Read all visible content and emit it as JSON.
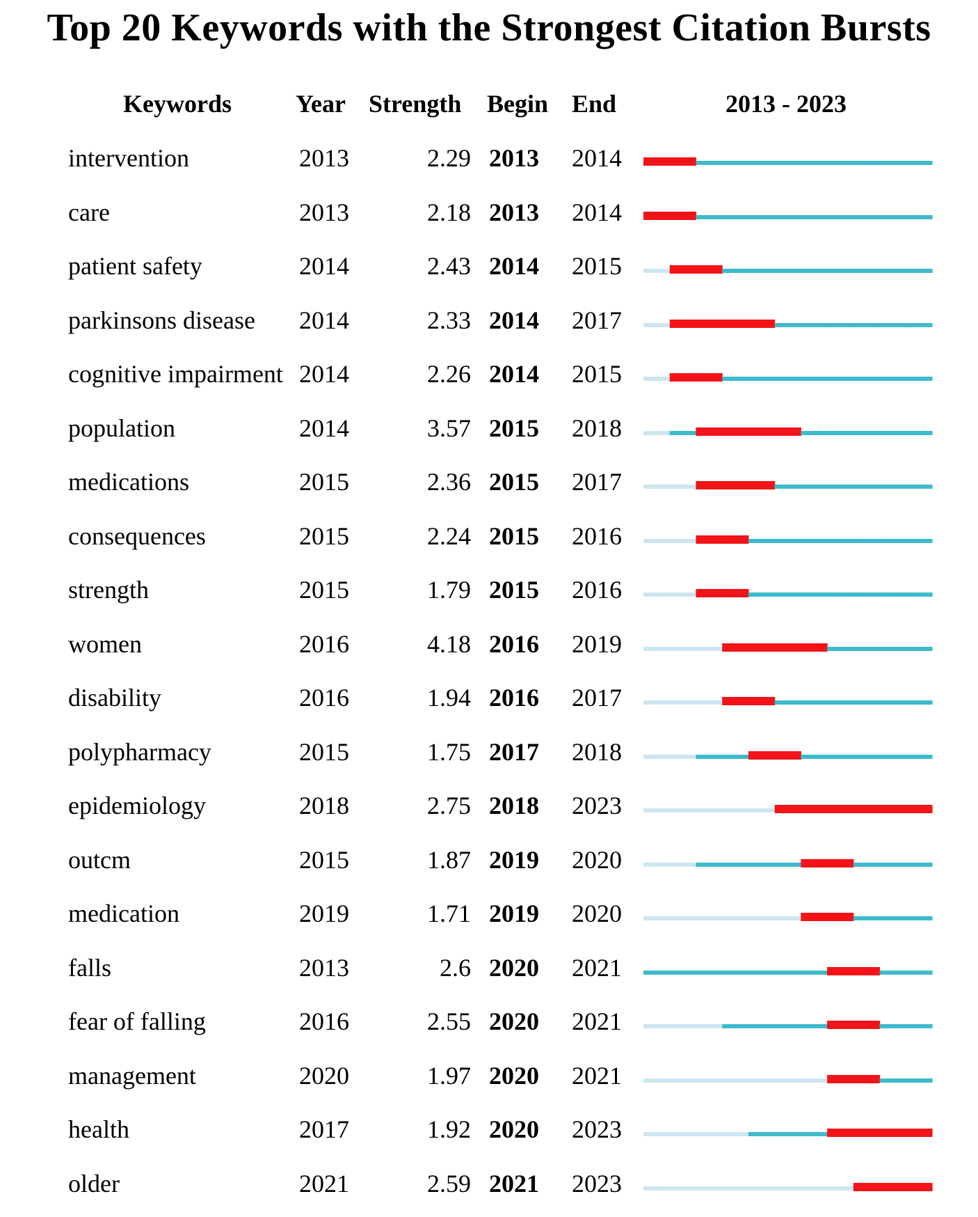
{
  "title": "Top 20 Keywords with the Strongest Citation Bursts",
  "headers": {
    "keywords": "Keywords",
    "year": "Year",
    "strength": "Strength",
    "begin": "Begin",
    "end": "End",
    "range": "2013 - 2023"
  },
  "colors": {
    "burst": "#f21418",
    "active": "#3dbbcb",
    "inactive": "#cde6f1"
  },
  "chart_data": {
    "type": "table",
    "title": "Top 20 Keywords with the Strongest Citation Bursts",
    "period": [
      2013,
      2023
    ],
    "columns": [
      "Keywords",
      "Year",
      "Strength",
      "Begin",
      "End",
      "2013 - 2023"
    ],
    "rows": [
      {
        "keyword": "intervention",
        "year": "2013",
        "strength": "2.29",
        "begin": "2013",
        "end": "2014"
      },
      {
        "keyword": "care",
        "year": "2013",
        "strength": "2.18",
        "begin": "2013",
        "end": "2014"
      },
      {
        "keyword": "patient safety",
        "year": "2014",
        "strength": "2.43",
        "begin": "2014",
        "end": "2015"
      },
      {
        "keyword": "parkinsons disease",
        "year": "2014",
        "strength": "2.33",
        "begin": "2014",
        "end": "2017"
      },
      {
        "keyword": "cognitive impairment",
        "year": "2014",
        "strength": "2.26",
        "begin": "2014",
        "end": "2015"
      },
      {
        "keyword": "population",
        "year": "2014",
        "strength": "3.57",
        "begin": "2015",
        "end": "2018"
      },
      {
        "keyword": "medications",
        "year": "2015",
        "strength": "2.36",
        "begin": "2015",
        "end": "2017"
      },
      {
        "keyword": "consequences",
        "year": "2015",
        "strength": "2.24",
        "begin": "2015",
        "end": "2016"
      },
      {
        "keyword": "strength",
        "year": "2015",
        "strength": "1.79",
        "begin": "2015",
        "end": "2016"
      },
      {
        "keyword": "women",
        "year": "2016",
        "strength": "4.18",
        "begin": "2016",
        "end": "2019"
      },
      {
        "keyword": "disability",
        "year": "2016",
        "strength": "1.94",
        "begin": "2016",
        "end": "2017"
      },
      {
        "keyword": "polypharmacy",
        "year": "2015",
        "strength": "1.75",
        "begin": "2017",
        "end": "2018"
      },
      {
        "keyword": "epidemiology",
        "year": "2018",
        "strength": "2.75",
        "begin": "2018",
        "end": "2023"
      },
      {
        "keyword": "outcm",
        "year": "2015",
        "strength": "1.87",
        "begin": "2019",
        "end": "2020"
      },
      {
        "keyword": "medication",
        "year": "2019",
        "strength": "1.71",
        "begin": "2019",
        "end": "2020"
      },
      {
        "keyword": "falls",
        "year": "2013",
        "strength": "2.6",
        "begin": "2020",
        "end": "2021"
      },
      {
        "keyword": "fear of falling",
        "year": "2016",
        "strength": "2.55",
        "begin": "2020",
        "end": "2021"
      },
      {
        "keyword": "management",
        "year": "2020",
        "strength": "1.97",
        "begin": "2020",
        "end": "2021"
      },
      {
        "keyword": "health",
        "year": "2017",
        "strength": "1.92",
        "begin": "2020",
        "end": "2023"
      },
      {
        "keyword": "older",
        "year": "2021",
        "strength": "2.59",
        "begin": "2021",
        "end": "2023"
      }
    ]
  }
}
